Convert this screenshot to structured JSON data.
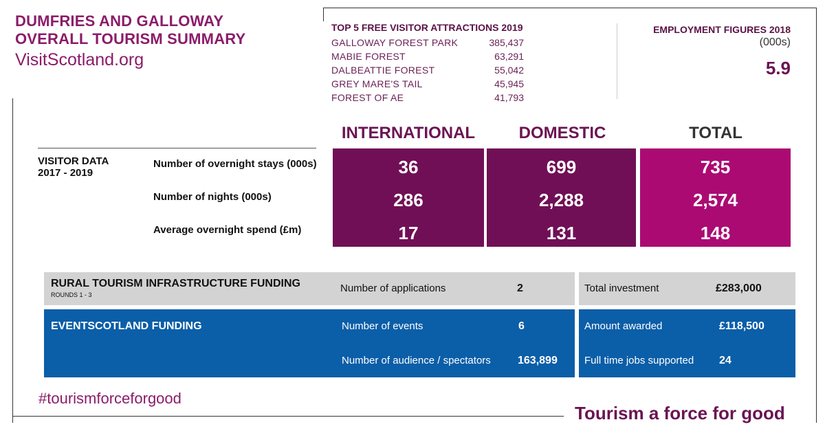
{
  "header": {
    "title_line1": "DUMFRIES AND GALLOWAY",
    "title_line2": "OVERALL TOURISM SUMMARY",
    "site": "VisitScotland.org"
  },
  "attractions": {
    "heading": "TOP 5 FREE VISITOR ATTRACTIONS 2019",
    "items": [
      {
        "name": "GALLOWAY FOREST PARK",
        "visitors": "385,437"
      },
      {
        "name": "MABIE FOREST",
        "visitors": "63,291"
      },
      {
        "name": "DALBEATTIE FOREST",
        "visitors": "55,042"
      },
      {
        "name": "GREY MARE'S TAIL",
        "visitors": "45,945"
      },
      {
        "name": "FOREST OF AE",
        "visitors": "41,793"
      }
    ]
  },
  "employment": {
    "heading": "EMPLOYMENT FIGURES 2018",
    "unit": "(000s)",
    "value": "5.9"
  },
  "visitor_data": {
    "label_line1": "VISITOR DATA",
    "label_line2": "2017 - 2019",
    "columns": [
      "INTERNATIONAL",
      "DOMESTIC",
      "TOTAL"
    ],
    "rows": [
      {
        "label": "Number of overnight stays (000s)",
        "values": [
          "36",
          "699",
          "735"
        ]
      },
      {
        "label": "Number of nights (000s)",
        "values": [
          "286",
          "2,288",
          "2,574"
        ]
      },
      {
        "label": "Average overnight spend (£m)",
        "values": [
          "17",
          "131",
          "148"
        ]
      }
    ]
  },
  "rural_funding": {
    "title": "RURAL TOURISM INFRASTRUCTURE FUNDING",
    "subtitle": "ROUNDS 1 - 3",
    "applications_label": "Number of applications",
    "applications_value": "2",
    "investment_label": "Total investment",
    "investment_value": "£283,000"
  },
  "events_funding": {
    "title": "EVENTSCOTLAND FUNDING",
    "events_label": "Number of events",
    "events_value": "6",
    "audience_label": "Number of audience / spectators",
    "audience_value": "163,899",
    "awarded_label": "Amount awarded",
    "awarded_value": "£118,500",
    "jobs_label": "Full time jobs supported",
    "jobs_value": "24"
  },
  "footer": {
    "hashtag": "#tourismforceforgood",
    "tagline": "Tourism a force for good"
  },
  "colors": {
    "brand_purple": "#700f55",
    "brand_magenta": "#ab0a73",
    "panel_grey": "#d3d3d3",
    "panel_blue": "#0b5ea8"
  }
}
